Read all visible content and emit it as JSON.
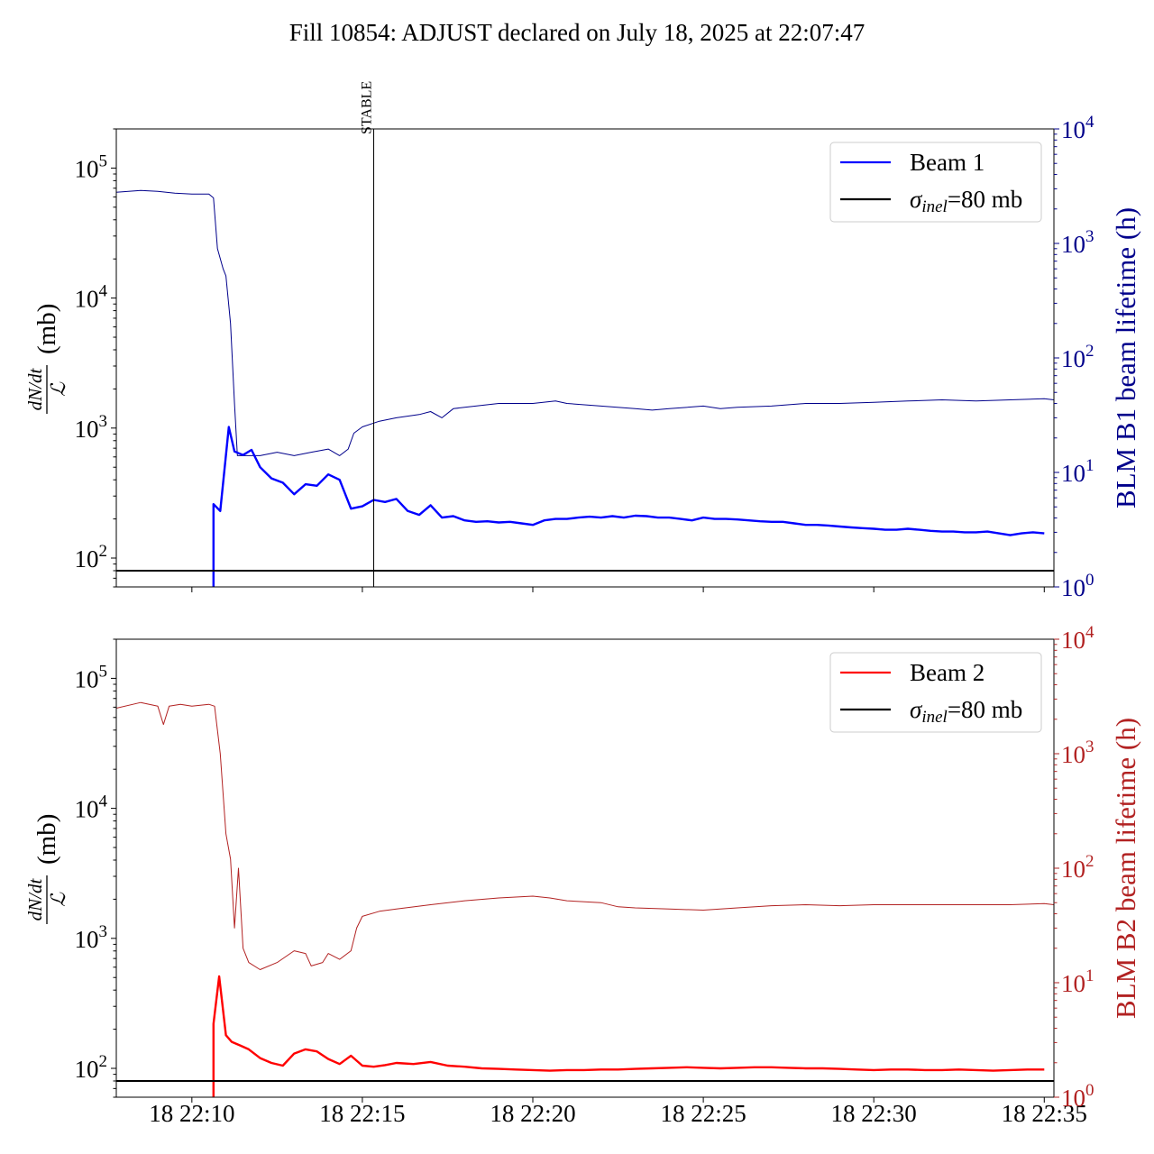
{
  "figure": {
    "title": "Fill 10854: ADJUST declared on July 18, 2025 at 22:07:47"
  },
  "chart_data": [
    {
      "type": "line",
      "panel": "top",
      "x_unit": "minutes after 22:00 on July 18, 2025",
      "xlim": [
        "22:07:47",
        "22:35:17"
      ],
      "x_tick_labels": [
        "18 22:10",
        "18 22:15",
        "18 22:20",
        "18 22:25",
        "18 22:30",
        "18 22:35"
      ],
      "ylabel_left": "dN/dt / ℒ (mb)",
      "ylim_left": [
        60,
        200000
      ],
      "yscale_left": "log",
      "y_ticks_left": [
        {
          "base": "10",
          "exp": "2"
        },
        {
          "base": "10",
          "exp": "3"
        },
        {
          "base": "10",
          "exp": "4"
        },
        {
          "base": "10",
          "exp": "5"
        }
      ],
      "ylabel_right": "BLM B1 beam lifetime (h)",
      "ylim_right": [
        1,
        10000
      ],
      "yscale_right": "log",
      "y_ticks_right": [
        {
          "base": "10",
          "exp": "0"
        },
        {
          "base": "10",
          "exp": "1"
        },
        {
          "base": "10",
          "exp": "2"
        },
        {
          "base": "10",
          "exp": "3"
        },
        {
          "base": "10",
          "exp": "4"
        }
      ],
      "annotation": {
        "text": "STABLE",
        "x": "22:15:20"
      },
      "legend": {
        "placement": "top-right",
        "entries": [
          {
            "label": "Beam 1",
            "color": "#0000ff"
          },
          {
            "label_sigma": "σ",
            "label_sub": "inel",
            "label_rest": "=80 mb",
            "color": "#000000"
          }
        ]
      },
      "series": [
        {
          "name": "Beam 1",
          "axis": "left",
          "color": "#0000ff",
          "style": "thick",
          "x": [
            "22:10:38",
            "22:10:38",
            "22:10:50",
            "22:11:05",
            "22:11:15",
            "22:11:30",
            "22:11:45",
            "22:12:00",
            "22:12:20",
            "22:12:40",
            "22:13:00",
            "22:13:20",
            "22:13:40",
            "22:14:00",
            "22:14:20",
            "22:14:40",
            "22:15:00",
            "22:15:20",
            "22:15:40",
            "22:16:00",
            "22:16:20",
            "22:16:40",
            "22:17:00",
            "22:17:20",
            "22:17:40",
            "22:18:00",
            "22:18:20",
            "22:18:40",
            "22:19:00",
            "22:19:20",
            "22:19:40",
            "22:20:00",
            "22:20:20",
            "22:20:40",
            "22:21:00",
            "22:21:20",
            "22:21:40",
            "22:22:00",
            "22:22:20",
            "22:22:40",
            "22:23:00",
            "22:23:20",
            "22:23:40",
            "22:24:00",
            "22:24:20",
            "22:24:40",
            "22:25:00",
            "22:25:20",
            "22:25:40",
            "22:26:00",
            "22:26:20",
            "22:26:40",
            "22:27:00",
            "22:27:20",
            "22:27:40",
            "22:28:00",
            "22:28:20",
            "22:28:40",
            "22:29:00",
            "22:29:20",
            "22:29:40",
            "22:30:00",
            "22:30:20",
            "22:30:40",
            "22:31:00",
            "22:31:20",
            "22:31:40",
            "22:32:00",
            "22:32:20",
            "22:32:40",
            "22:33:00",
            "22:33:20",
            "22:33:40",
            "22:34:00",
            "22:34:20",
            "22:34:40",
            "22:35:00"
          ],
          "values": [
            60,
            260,
            230,
            1020,
            660,
            620,
            680,
            500,
            410,
            380,
            310,
            370,
            360,
            440,
            400,
            240,
            250,
            280,
            270,
            285,
            230,
            215,
            255,
            205,
            210,
            195,
            190,
            192,
            188,
            190,
            185,
            180,
            195,
            200,
            200,
            205,
            208,
            205,
            210,
            205,
            212,
            210,
            205,
            205,
            200,
            195,
            205,
            200,
            200,
            198,
            195,
            192,
            190,
            190,
            185,
            180,
            180,
            178,
            175,
            172,
            170,
            168,
            165,
            165,
            168,
            165,
            162,
            160,
            160,
            158,
            158,
            160,
            155,
            150,
            155,
            158,
            155
          ]
        },
        {
          "name": "σinel=80 mb",
          "axis": "left",
          "color": "#000000",
          "style": "hline",
          "x": [
            "22:07:47",
            "22:35:17"
          ],
          "values": [
            80,
            80
          ]
        },
        {
          "name": "BLM B1 beam lifetime",
          "axis": "right",
          "color": "#00008b",
          "style": "thin",
          "x": [
            "22:07:47",
            "22:08:30",
            "22:09:00",
            "22:09:30",
            "22:10:00",
            "22:10:30",
            "22:10:38",
            "22:10:45",
            "22:10:55",
            "22:11:00",
            "22:11:08",
            "22:11:15",
            "22:11:20",
            "22:12:00",
            "22:12:30",
            "22:13:00",
            "22:13:30",
            "22:14:00",
            "22:14:20",
            "22:14:35",
            "22:14:45",
            "22:15:00",
            "22:15:30",
            "22:16:00",
            "22:16:40",
            "22:17:00",
            "22:17:20",
            "22:17:40",
            "22:18:00",
            "22:19:00",
            "22:20:00",
            "22:20:40",
            "22:21:00",
            "22:22:00",
            "22:23:00",
            "22:23:30",
            "22:24:00",
            "22:25:00",
            "22:25:30",
            "22:26:00",
            "22:27:00",
            "22:28:00",
            "22:29:00",
            "22:30:00",
            "22:31:00",
            "22:32:00",
            "22:33:00",
            "22:34:00",
            "22:35:00",
            "22:35:17"
          ],
          "values": [
            2800,
            2900,
            2850,
            2750,
            2700,
            2700,
            2500,
            900,
            600,
            520,
            200,
            40,
            14,
            14,
            15,
            14,
            15,
            16,
            14,
            16,
            22,
            25,
            28,
            30,
            32,
            34,
            30,
            36,
            37,
            40,
            40,
            42,
            40,
            38,
            36,
            35,
            36,
            38,
            36,
            37,
            38,
            40,
            40,
            41,
            42,
            43,
            42,
            43,
            44,
            43
          ]
        }
      ]
    },
    {
      "type": "line",
      "panel": "bottom",
      "x_unit": "minutes after 22:00 on July 18, 2025",
      "xlim": [
        "22:07:47",
        "22:35:17"
      ],
      "x_tick_labels": [
        "18 22:10",
        "18 22:15",
        "18 22:20",
        "18 22:25",
        "18 22:30",
        "18 22:35"
      ],
      "ylabel_left": "dN/dt / ℒ (mb)",
      "ylim_left": [
        60,
        200000
      ],
      "yscale_left": "log",
      "y_ticks_left": [
        {
          "base": "10",
          "exp": "2"
        },
        {
          "base": "10",
          "exp": "3"
        },
        {
          "base": "10",
          "exp": "4"
        },
        {
          "base": "10",
          "exp": "5"
        }
      ],
      "ylabel_right": "BLM B2 beam lifetime (h)",
      "ylim_right": [
        1,
        10000
      ],
      "yscale_right": "log",
      "y_ticks_right": [
        {
          "base": "10",
          "exp": "0"
        },
        {
          "base": "10",
          "exp": "1"
        },
        {
          "base": "10",
          "exp": "2"
        },
        {
          "base": "10",
          "exp": "3"
        },
        {
          "base": "10",
          "exp": "4"
        }
      ],
      "legend": {
        "placement": "top-right",
        "entries": [
          {
            "label": "Beam 2",
            "color": "#ff0000"
          },
          {
            "label_sigma": "σ",
            "label_sub": "inel",
            "label_rest": "=80 mb",
            "color": "#000000"
          }
        ]
      },
      "series": [
        {
          "name": "Beam 2",
          "axis": "left",
          "color": "#ff0000",
          "style": "thick",
          "x": [
            "22:10:38",
            "22:10:38",
            "22:10:48",
            "22:11:00",
            "22:11:10",
            "22:11:25",
            "22:11:40",
            "22:12:00",
            "22:12:20",
            "22:12:40",
            "22:13:00",
            "22:13:20",
            "22:13:40",
            "22:14:00",
            "22:14:20",
            "22:14:40",
            "22:15:00",
            "22:15:20",
            "22:15:40",
            "22:16:00",
            "22:16:30",
            "22:17:00",
            "22:17:30",
            "22:18:00",
            "22:18:30",
            "22:19:00",
            "22:19:30",
            "22:20:00",
            "22:20:30",
            "22:21:00",
            "22:21:30",
            "22:22:00",
            "22:22:30",
            "22:23:00",
            "22:23:30",
            "22:24:00",
            "22:24:30",
            "22:25:00",
            "22:25:30",
            "22:26:00",
            "22:26:30",
            "22:27:00",
            "22:27:30",
            "22:28:00",
            "22:28:30",
            "22:29:00",
            "22:29:30",
            "22:30:00",
            "22:30:30",
            "22:31:00",
            "22:31:30",
            "22:32:00",
            "22:32:30",
            "22:33:00",
            "22:33:30",
            "22:34:00",
            "22:34:30",
            "22:35:00"
          ],
          "values": [
            60,
            220,
            510,
            180,
            160,
            150,
            140,
            120,
            110,
            105,
            130,
            140,
            135,
            118,
            108,
            125,
            105,
            103,
            106,
            110,
            108,
            112,
            105,
            103,
            100,
            99,
            98,
            97,
            96,
            97,
            97,
            98,
            98,
            99,
            100,
            101,
            102,
            101,
            100,
            101,
            102,
            102,
            101,
            100,
            100,
            99,
            98,
            97,
            98,
            98,
            97,
            97,
            98,
            97,
            96,
            97,
            98,
            98
          ]
        },
        {
          "name": "σinel=80 mb",
          "axis": "left",
          "color": "#000000",
          "style": "hline",
          "x": [
            "22:07:47",
            "22:35:17"
          ],
          "values": [
            80,
            80
          ]
        },
        {
          "name": "BLM B2 beam lifetime",
          "axis": "right",
          "color": "#b22222",
          "style": "thin",
          "x": [
            "22:07:47",
            "22:08:30",
            "22:09:00",
            "22:09:10",
            "22:09:20",
            "22:09:40",
            "22:10:00",
            "22:10:30",
            "22:10:40",
            "22:10:50",
            "22:11:00",
            "22:11:08",
            "22:11:15",
            "22:11:22",
            "22:11:30",
            "22:11:40",
            "22:12:00",
            "22:12:30",
            "22:13:00",
            "22:13:20",
            "22:13:30",
            "22:13:50",
            "22:14:00",
            "22:14:20",
            "22:14:40",
            "22:14:50",
            "22:15:00",
            "22:15:30",
            "22:16:00",
            "22:17:00",
            "22:18:00",
            "22:19:00",
            "22:20:00",
            "22:20:30",
            "22:21:00",
            "22:22:00",
            "22:22:30",
            "22:23:00",
            "22:24:00",
            "22:25:00",
            "22:25:30",
            "22:26:00",
            "22:27:00",
            "22:28:00",
            "22:29:00",
            "22:30:00",
            "22:31:00",
            "22:32:00",
            "22:33:00",
            "22:34:00",
            "22:35:00",
            "22:35:17"
          ],
          "values": [
            2500,
            2800,
            2600,
            1800,
            2600,
            2700,
            2600,
            2700,
            2600,
            1000,
            200,
            120,
            30,
            100,
            20,
            15,
            13,
            15,
            19,
            18,
            14,
            15,
            18,
            16,
            19,
            30,
            38,
            42,
            44,
            48,
            52,
            55,
            57,
            55,
            52,
            50,
            46,
            45,
            44,
            43,
            44,
            45,
            47,
            48,
            47,
            48,
            48,
            48,
            48,
            48,
            49,
            48
          ]
        }
      ]
    }
  ]
}
